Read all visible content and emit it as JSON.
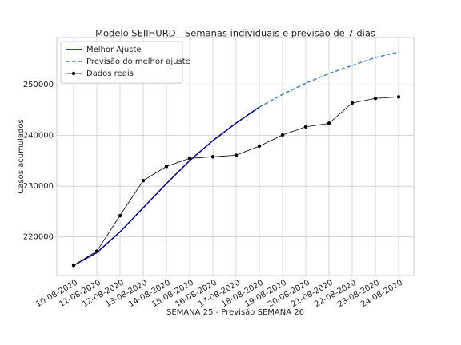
{
  "chart_data": {
    "type": "line",
    "title": "Modelo SEIIHURD - Semanas individuais e previsão de 7 dias",
    "xlabel": "SEMANA 25 - Previsão SEMANA 26",
    "ylabel": "Casos acumulados",
    "categories": [
      "10-08-2020",
      "11-08-2020",
      "12-08-2020",
      "13-08-2020",
      "14-08-2020",
      "15-08-2020",
      "16-08-2020",
      "17-08-2020",
      "18-08-2020",
      "19-08-2020",
      "20-08-2020",
      "21-08-2020",
      "22-08-2020",
      "23-08-2020",
      "24-08-2020"
    ],
    "series": [
      {
        "name": "Melhor Ajuste",
        "color": "#000080",
        "linestyle": "solid",
        "values": [
          214400,
          216900,
          221000,
          225750,
          230500,
          235050,
          238980,
          242440,
          245590,
          null,
          null,
          null,
          null,
          null,
          null
        ]
      },
      {
        "name": "Previsão do melhor ajuste",
        "color": "#4682b4",
        "linestyle": "dashed",
        "values": [
          null,
          null,
          null,
          null,
          null,
          null,
          null,
          null,
          245590,
          248100,
          250300,
          252200,
          253800,
          255350,
          256450
        ]
      },
      {
        "name": "Dados reais",
        "color": "#000000",
        "linestyle": "solid",
        "marker": "circle",
        "values": [
          214400,
          217200,
          224200,
          231100,
          233900,
          235500,
          235800,
          236100,
          237900,
          240100,
          241700,
          242400,
          246400,
          247300,
          247600
        ]
      }
    ],
    "ylim": [
      212400,
      259300
    ],
    "yticks": [
      220000,
      230000,
      240000,
      250000
    ],
    "grid": true,
    "legend": "upper left"
  }
}
